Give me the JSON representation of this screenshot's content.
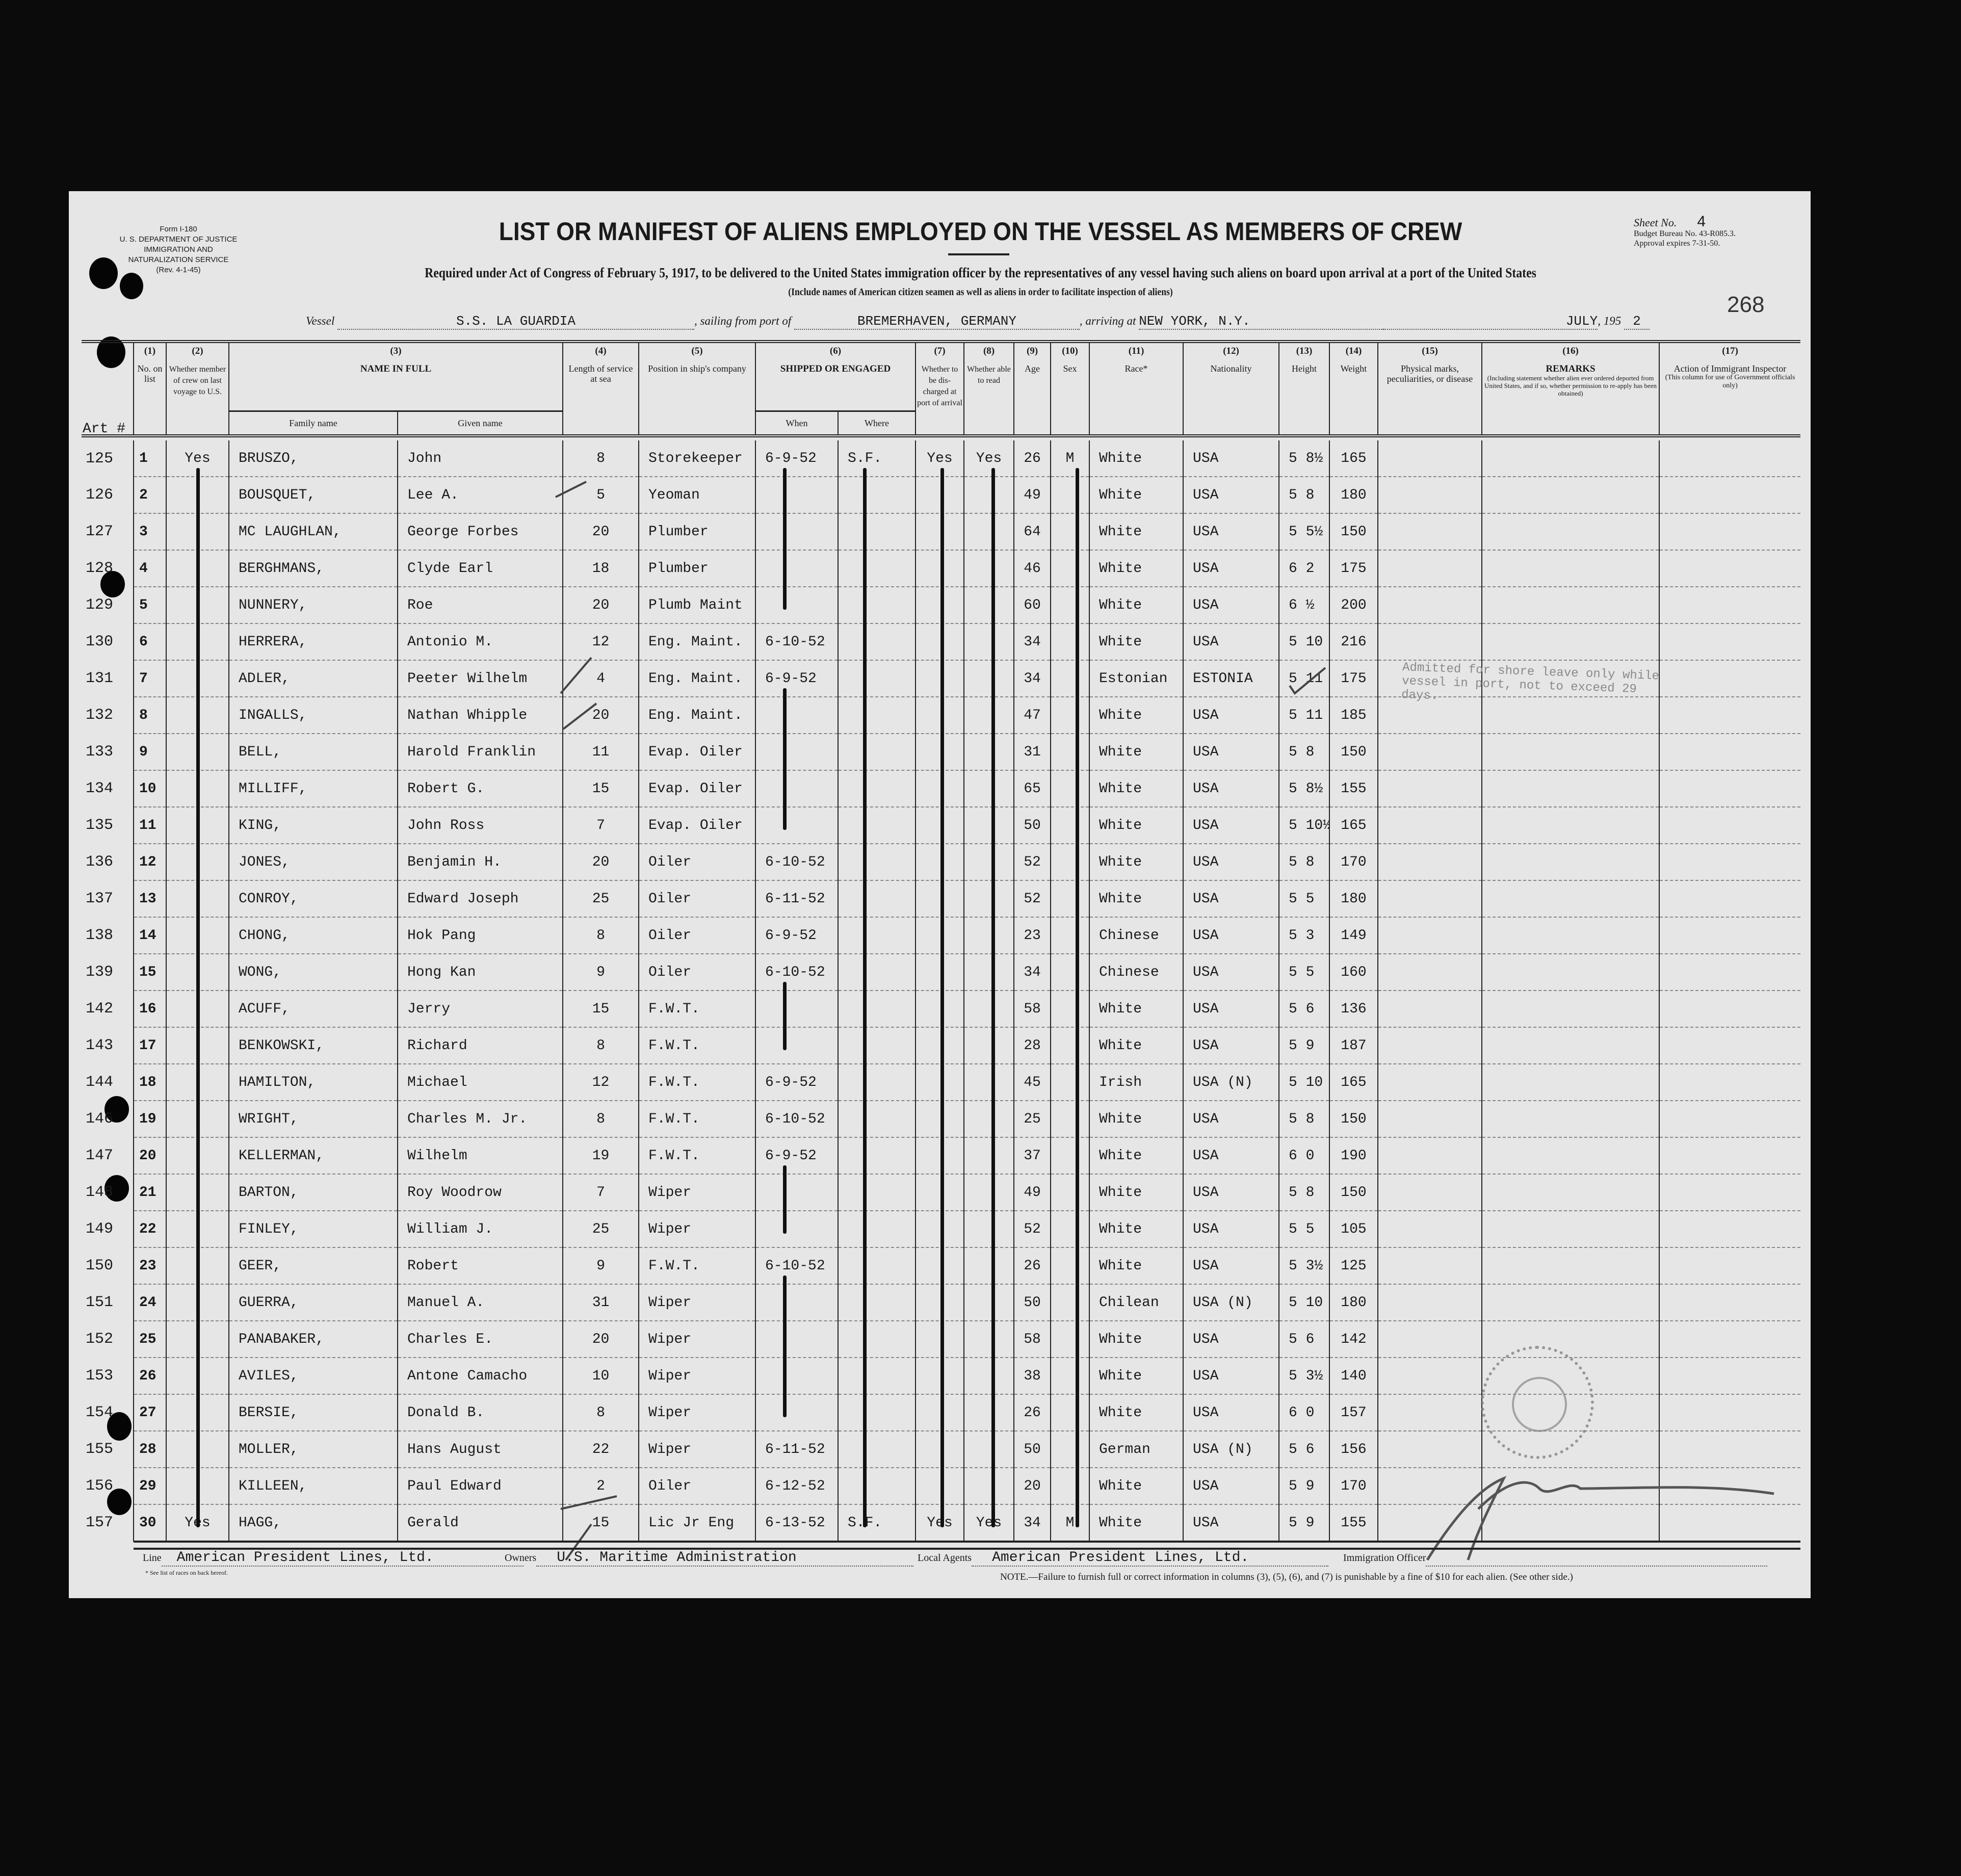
{
  "form": {
    "form_no": "Form I-180",
    "department": "U. S. DEPARTMENT OF JUSTICE",
    "service": "IMMIGRATION AND NATURALIZATION SERVICE",
    "revision": "(Rev. 4-1-45)",
    "title": "LIST OR MANIFEST OF ALIENS EMPLOYED ON THE VESSEL AS MEMBERS OF CREW",
    "subtitle": "Required under Act of Congress of February 5, 1917, to be delivered to the United States immigration officer by the representatives of any vessel having such aliens on board upon arrival at a port of the United States",
    "subtitle2": "(Include names of American citizen seamen as well as aliens in order to facilitate inspection of aliens)",
    "sheet_label": "Sheet No.",
    "sheet_no": "4",
    "budget": "Budget Bureau No. 43-R085.3.",
    "approval": "Approval expires 7-31-50.",
    "handwritten_number": "268"
  },
  "voyage": {
    "vessel_label": "Vessel",
    "vessel": "S.S. LA GUARDIA",
    "sailing_label": ", sailing from port of",
    "sailing_from": "BREMERHAVEN, GERMANY",
    "arriving_label": ", arriving at",
    "arriving_at": "NEW YORK, N.Y.",
    "month": "JULY",
    "year_prefix": ", 195",
    "year_digit": "2"
  },
  "columns": {
    "art_label": "Art #",
    "c1": {
      "num": "(1)",
      "label": "No. on list"
    },
    "c2": {
      "num": "(2)",
      "label": "Whether member of crew on last voyage to U.S."
    },
    "c3": {
      "num": "(3)",
      "label": "NAME IN FULL",
      "family": "Family name",
      "given": "Given name"
    },
    "c4": {
      "num": "(4)",
      "label": "Length of service at sea"
    },
    "c5": {
      "num": "(5)",
      "label": "Position in ship's company"
    },
    "c6": {
      "num": "(6)",
      "label": "SHIPPED OR ENGAGED",
      "when": "When",
      "where": "Where"
    },
    "c7": {
      "num": "(7)",
      "label": "Whether to be dis-charged at port of arrival"
    },
    "c8": {
      "num": "(8)",
      "label": "Whether able to read"
    },
    "c9": {
      "num": "(9)",
      "label": "Age"
    },
    "c10": {
      "num": "(10)",
      "label": "Sex"
    },
    "c11": {
      "num": "(11)",
      "label": "Race*"
    },
    "c12": {
      "num": "(12)",
      "label": "Nationality"
    },
    "c13": {
      "num": "(13)",
      "label": "Height"
    },
    "c14": {
      "num": "(14)",
      "label": "Weight"
    },
    "c15": {
      "num": "(15)",
      "label": "Physical marks, peculiarities, or disease"
    },
    "c16": {
      "num": "(16)",
      "label": "REMARKS",
      "note": "(Including statement whether alien ever ordered deported from United States, and if so, whether permission to re-apply has been obtained)"
    },
    "c17": {
      "num": "(17)",
      "label": "Action of Immigrant Inspector",
      "note": "(This column for use of Government officials only)"
    }
  },
  "rows": [
    {
      "art": "125",
      "no": "1",
      "crew": "Yes",
      "family": "BRUSZO,",
      "given": "John",
      "length": "8",
      "position": "Storekeeper",
      "when": "6-9-52",
      "where": "S.F.",
      "discharged": "Yes",
      "read": "Yes",
      "age": "26",
      "sex": "M",
      "race": "White",
      "nationality": "USA",
      "height": "5 8½",
      "weight": "165"
    },
    {
      "art": "126",
      "no": "2",
      "crew": "",
      "family": "BOUSQUET,",
      "given": "Lee A.",
      "length": "5",
      "position": "Yeoman",
      "when": "",
      "where": "",
      "discharged": "",
      "read": "",
      "age": "49",
      "sex": "",
      "race": "White",
      "nationality": "USA",
      "height": "5 8",
      "weight": "180"
    },
    {
      "art": "127",
      "no": "3",
      "crew": "",
      "family": "MC LAUGHLAN,",
      "given": "George Forbes",
      "length": "20",
      "position": "Plumber",
      "when": "",
      "where": "",
      "discharged": "",
      "read": "",
      "age": "64",
      "sex": "",
      "race": "White",
      "nationality": "USA",
      "height": "5 5½",
      "weight": "150"
    },
    {
      "art": "128",
      "no": "4",
      "crew": "",
      "family": "BERGHMANS,",
      "given": "Clyde Earl",
      "length": "18",
      "position": "Plumber",
      "when": "",
      "where": "",
      "discharged": "",
      "read": "",
      "age": "46",
      "sex": "",
      "race": "White",
      "nationality": "USA",
      "height": "6 2",
      "weight": "175"
    },
    {
      "art": "129",
      "no": "5",
      "crew": "",
      "family": "NUNNERY,",
      "given": "Roe",
      "length": "20",
      "position": "Plumb Maint",
      "when": "",
      "where": "",
      "discharged": "",
      "read": "",
      "age": "60",
      "sex": "",
      "race": "White",
      "nationality": "USA",
      "height": "6 ½",
      "weight": "200"
    },
    {
      "art": "130",
      "no": "6",
      "crew": "",
      "family": "HERRERA,",
      "given": "Antonio M.",
      "length": "12",
      "position": "Eng. Maint.",
      "when": "6-10-52",
      "where": "",
      "discharged": "",
      "read": "",
      "age": "34",
      "sex": "",
      "race": "White",
      "nationality": "USA",
      "height": "5 10",
      "weight": "216"
    },
    {
      "art": "131",
      "no": "7",
      "crew": "",
      "family": "ADLER,",
      "given": "Peeter Wilhelm",
      "length": "4",
      "position": "Eng. Maint.",
      "when": "6-9-52",
      "where": "",
      "discharged": "",
      "read": "",
      "age": "34",
      "sex": "",
      "race": "Estonian",
      "nationality": "ESTONIA",
      "height": "5 11",
      "weight": "175"
    },
    {
      "art": "132",
      "no": "8",
      "crew": "",
      "family": "INGALLS,",
      "given": "Nathan Whipple",
      "length": "20",
      "position": "Eng. Maint.",
      "when": "",
      "where": "",
      "discharged": "",
      "read": "",
      "age": "47",
      "sex": "",
      "race": "White",
      "nationality": "USA",
      "height": "5 11",
      "weight": "185"
    },
    {
      "art": "133",
      "no": "9",
      "crew": "",
      "family": "BELL,",
      "given": "Harold Franklin",
      "length": "11",
      "position": "Evap. Oiler",
      "when": "",
      "where": "",
      "discharged": "",
      "read": "",
      "age": "31",
      "sex": "",
      "race": "White",
      "nationality": "USA",
      "height": "5 8",
      "weight": "150"
    },
    {
      "art": "134",
      "no": "10",
      "crew": "",
      "family": "MILLIFF,",
      "given": "Robert G.",
      "length": "15",
      "position": "Evap. Oiler",
      "when": "",
      "where": "",
      "discharged": "",
      "read": "",
      "age": "65",
      "sex": "",
      "race": "White",
      "nationality": "USA",
      "height": "5 8½",
      "weight": "155"
    },
    {
      "art": "135",
      "no": "11",
      "crew": "",
      "family": "KING,",
      "given": "John Ross",
      "length": "7",
      "position": "Evap. Oiler",
      "when": "",
      "where": "",
      "discharged": "",
      "read": "",
      "age": "50",
      "sex": "",
      "race": "White",
      "nationality": "USA",
      "height": "5 10½",
      "weight": "165"
    },
    {
      "art": "136",
      "no": "12",
      "crew": "",
      "family": "JONES,",
      "given": "Benjamin H.",
      "length": "20",
      "position": "Oiler",
      "when": "6-10-52",
      "where": "",
      "discharged": "",
      "read": "",
      "age": "52",
      "sex": "",
      "race": "White",
      "nationality": "USA",
      "height": "5 8",
      "weight": "170"
    },
    {
      "art": "137",
      "no": "13",
      "crew": "",
      "family": "CONROY,",
      "given": "Edward Joseph",
      "length": "25",
      "position": "Oiler",
      "when": "6-11-52",
      "where": "",
      "discharged": "",
      "read": "",
      "age": "52",
      "sex": "",
      "race": "White",
      "nationality": "USA",
      "height": "5 5",
      "weight": "180"
    },
    {
      "art": "138",
      "no": "14",
      "crew": "",
      "family": "CHONG,",
      "given": "Hok Pang",
      "length": "8",
      "position": "Oiler",
      "when": "6-9-52",
      "where": "",
      "discharged": "",
      "read": "",
      "age": "23",
      "sex": "",
      "race": "Chinese",
      "nationality": "USA",
      "height": "5 3",
      "weight": "149"
    },
    {
      "art": "139",
      "no": "15",
      "crew": "",
      "family": "WONG,",
      "given": "Hong Kan",
      "length": "9",
      "position": "Oiler",
      "when": "6-10-52",
      "where": "",
      "discharged": "",
      "read": "",
      "age": "34",
      "sex": "",
      "race": "Chinese",
      "nationality": "USA",
      "height": "5 5",
      "weight": "160"
    },
    {
      "art": "142",
      "no": "16",
      "crew": "",
      "family": "ACUFF,",
      "given": "Jerry",
      "length": "15",
      "position": "F.W.T.",
      "when": "",
      "where": "",
      "discharged": "",
      "read": "",
      "age": "58",
      "sex": "",
      "race": "White",
      "nationality": "USA",
      "height": "5 6",
      "weight": "136"
    },
    {
      "art": "143",
      "no": "17",
      "crew": "",
      "family": "BENKOWSKI,",
      "given": "Richard",
      "length": "8",
      "position": "F.W.T.",
      "when": "",
      "where": "",
      "discharged": "",
      "read": "",
      "age": "28",
      "sex": "",
      "race": "White",
      "nationality": "USA",
      "height": "5 9",
      "weight": "187"
    },
    {
      "art": "144",
      "no": "18",
      "crew": "",
      "family": "HAMILTON,",
      "given": "Michael",
      "length": "12",
      "position": "F.W.T.",
      "when": "6-9-52",
      "where": "",
      "discharged": "",
      "read": "",
      "age": "45",
      "sex": "",
      "race": "Irish",
      "nationality": "USA (N)",
      "height": "5 10",
      "weight": "165"
    },
    {
      "art": "146",
      "no": "19",
      "crew": "",
      "family": "WRIGHT,",
      "given": "Charles M. Jr.",
      "length": "8",
      "position": "F.W.T.",
      "when": "6-10-52",
      "where": "",
      "discharged": "",
      "read": "",
      "age": "25",
      "sex": "",
      "race": "White",
      "nationality": "USA",
      "height": "5 8",
      "weight": "150"
    },
    {
      "art": "147",
      "no": "20",
      "crew": "",
      "family": "KELLERMAN,",
      "given": "Wilhelm",
      "length": "19",
      "position": "F.W.T.",
      "when": "6-9-52",
      "where": "",
      "discharged": "",
      "read": "",
      "age": "37",
      "sex": "",
      "race": "White",
      "nationality": "USA",
      "height": "6 0",
      "weight": "190"
    },
    {
      "art": "148",
      "no": "21",
      "crew": "",
      "family": "BARTON,",
      "given": "Roy Woodrow",
      "length": "7",
      "position": "Wiper",
      "when": "",
      "where": "",
      "discharged": "",
      "read": "",
      "age": "49",
      "sex": "",
      "race": "White",
      "nationality": "USA",
      "height": "5 8",
      "weight": "150"
    },
    {
      "art": "149",
      "no": "22",
      "crew": "",
      "family": "FINLEY,",
      "given": "William J.",
      "length": "25",
      "position": "Wiper",
      "when": "",
      "where": "",
      "discharged": "",
      "read": "",
      "age": "52",
      "sex": "",
      "race": "White",
      "nationality": "USA",
      "height": "5 5",
      "weight": "105"
    },
    {
      "art": "150",
      "no": "23",
      "crew": "",
      "family": "GEER,",
      "given": "Robert",
      "length": "9",
      "position": "F.W.T.",
      "when": "6-10-52",
      "where": "",
      "discharged": "",
      "read": "",
      "age": "26",
      "sex": "",
      "race": "White",
      "nationality": "USA",
      "height": "5 3½",
      "weight": "125"
    },
    {
      "art": "151",
      "no": "24",
      "crew": "",
      "family": "GUERRA,",
      "given": "Manuel A.",
      "length": "31",
      "position": "Wiper",
      "when": "",
      "where": "",
      "discharged": "",
      "read": "",
      "age": "50",
      "sex": "",
      "race": "Chilean",
      "nationality": "USA (N)",
      "height": "5 10",
      "weight": "180"
    },
    {
      "art": "152",
      "no": "25",
      "crew": "",
      "family": "PANABAKER,",
      "given": "Charles E.",
      "length": "20",
      "position": "Wiper",
      "when": "",
      "where": "",
      "discharged": "",
      "read": "",
      "age": "58",
      "sex": "",
      "race": "White",
      "nationality": "USA",
      "height": "5 6",
      "weight": "142"
    },
    {
      "art": "153",
      "no": "26",
      "crew": "",
      "family": "AVILES,",
      "given": "Antone Camacho",
      "length": "10",
      "position": "Wiper",
      "when": "",
      "where": "",
      "discharged": "",
      "read": "",
      "age": "38",
      "sex": "",
      "race": "White",
      "nationality": "USA",
      "height": "5 3½",
      "weight": "140"
    },
    {
      "art": "154",
      "no": "27",
      "crew": "",
      "family": "BERSIE,",
      "given": "Donald B.",
      "length": "8",
      "position": "Wiper",
      "when": "",
      "where": "",
      "discharged": "",
      "read": "",
      "age": "26",
      "sex": "",
      "race": "White",
      "nationality": "USA",
      "height": "6 0",
      "weight": "157"
    },
    {
      "art": "155",
      "no": "28",
      "crew": "",
      "family": "MOLLER,",
      "given": "Hans August",
      "length": "22",
      "position": "Wiper",
      "when": "6-11-52",
      "where": "",
      "discharged": "",
      "read": "",
      "age": "50",
      "sex": "",
      "race": "German",
      "nationality": "USA (N)",
      "height": "5 6",
      "weight": "156"
    },
    {
      "art": "156",
      "no": "29",
      "crew": "",
      "family": "KILLEEN,",
      "given": "Paul Edward",
      "length": "2",
      "position": "Oiler",
      "when": "6-12-52",
      "where": "",
      "discharged": "",
      "read": "",
      "age": "20",
      "sex": "",
      "race": "White",
      "nationality": "USA",
      "height": "5 9",
      "weight": "170"
    },
    {
      "art": "157",
      "no": "30",
      "crew": "Yes",
      "family": "HAGG,",
      "given": "Gerald",
      "length": "15",
      "position": "Lic Jr Eng",
      "when": "6-13-52",
      "where": "S.F.",
      "discharged": "Yes",
      "read": "Yes",
      "age": "34",
      "sex": "M",
      "race": "White",
      "nationality": "USA",
      "height": "5 9",
      "weight": "155"
    }
  ],
  "remark_row7": "Admitted for shore leave only while vessel in port, not to exceed 29 days.",
  "footer": {
    "line_label": "Line",
    "line": "American President Lines, Ltd.",
    "owners_label": "Owners",
    "owners": "U.S. Maritime Administration",
    "agents_label": "Local Agents",
    "agents": "American President Lines, Ltd.",
    "officer_label": "Immigration Officer",
    "races_note": "* See list of races on back hereof.",
    "note": "NOTE.—Failure to furnish full or correct information in columns (3), (5), (6), and (7) is punishable by a fine of $10 for each alien.  (See other side.)"
  }
}
